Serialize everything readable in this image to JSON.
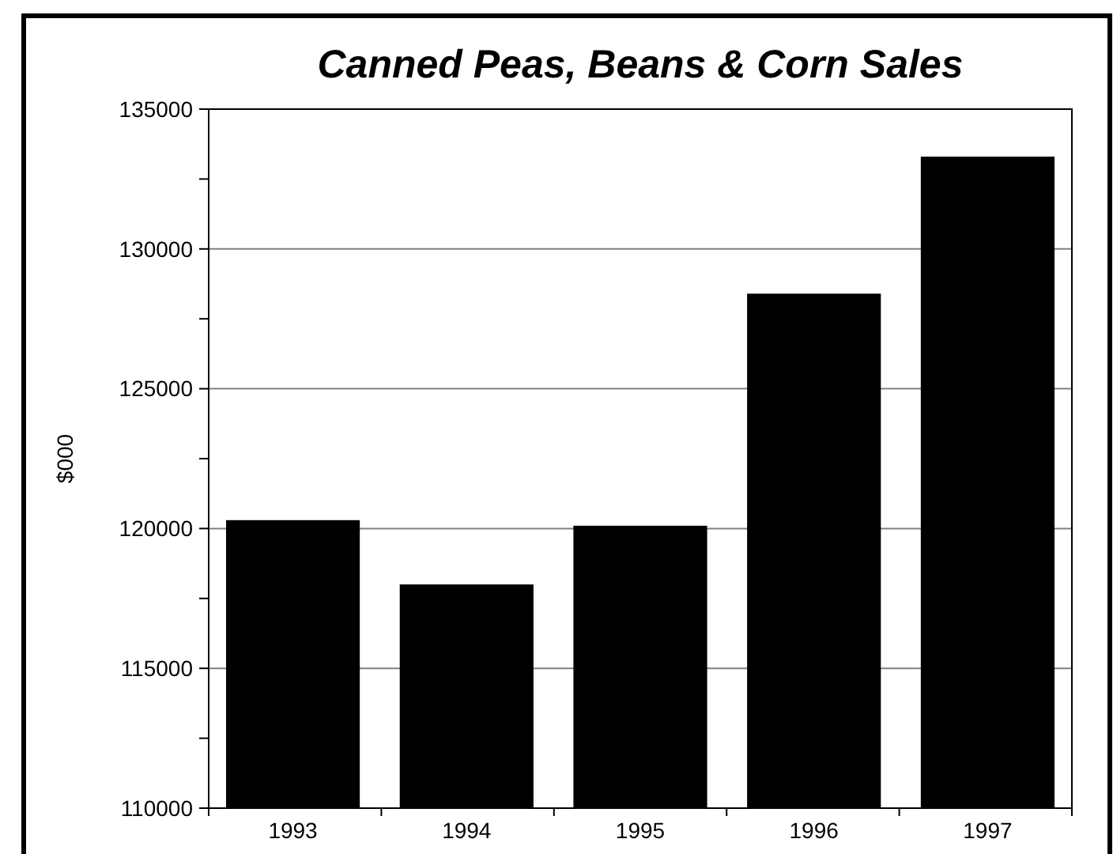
{
  "chart_data": {
    "type": "bar",
    "title": "Canned Peas, Beans & Corn Sales",
    "ylabel": "$000",
    "categories": [
      "1993",
      "1994",
      "1995",
      "1996",
      "1997"
    ],
    "values": [
      120300,
      118000,
      120100,
      128400,
      133300
    ],
    "color": "#000000",
    "ylim": [
      110000,
      135000
    ],
    "yticks": [
      110000,
      {
        "value": 112500,
        "label": null
      },
      115000,
      {
        "value": 117500,
        "label": null
      },
      120000,
      {
        "value": 122500,
        "label": null
      },
      125000,
      {
        "value": 127500,
        "label": null
      },
      130000,
      {
        "value": 132500,
        "label": null
      },
      135000
    ],
    "grid": "y"
  }
}
